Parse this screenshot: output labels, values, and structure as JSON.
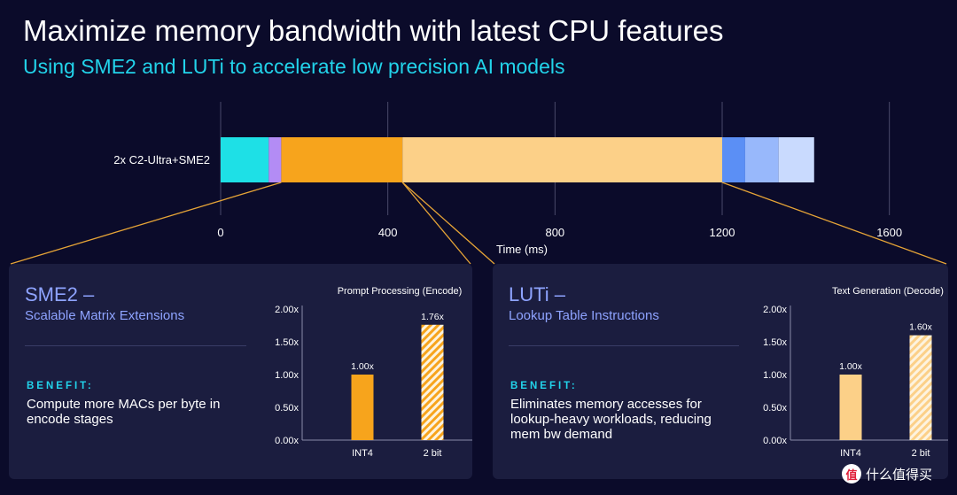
{
  "header": {
    "title": "Maximize memory bandwidth with latest CPU features",
    "subtitle": "Using SME2 and LUTi to accelerate low precision AI models"
  },
  "colors": {
    "accent_teal": "#22d3ea",
    "heading_blue": "#8ea3ff",
    "bar_orange": "#f7a41c",
    "bar_light_orange": "#fcd088",
    "connector_orange": "#e6a437"
  },
  "chart_data": [
    {
      "type": "bar",
      "orientation": "horizontal-stacked",
      "categories": [
        "2x C2-Ultra+SME2"
      ],
      "xlabel": "Time (ms)",
      "xlim": [
        0,
        1800
      ],
      "xticks": [
        0,
        400,
        800,
        1200,
        1600
      ],
      "grid": true,
      "segments": [
        {
          "start": 0,
          "end": 115,
          "color": "#1ee0e6"
        },
        {
          "start": 115,
          "end": 145,
          "color": "#b38cf5"
        },
        {
          "start": 145,
          "end": 435,
          "color": "#f7a41c"
        },
        {
          "start": 435,
          "end": 1200,
          "color": "#fcd088"
        },
        {
          "start": 1200,
          "end": 1255,
          "color": "#5b8ff5"
        },
        {
          "start": 1255,
          "end": 1335,
          "color": "#98b8fb"
        },
        {
          "start": 1335,
          "end": 1420,
          "color": "#c9dafe"
        }
      ]
    },
    {
      "type": "bar",
      "title": "Prompt Processing (Encode)",
      "categories": [
        "INT4",
        "2 bit"
      ],
      "values": [
        1.0,
        1.76
      ],
      "data_labels": [
        "1.00x",
        "1.76x"
      ],
      "ylim": [
        0,
        2.0
      ],
      "yticks": [
        "0.00x",
        "0.50x",
        "1.00x",
        "1.50x",
        "2.00x"
      ],
      "colors": [
        "#f7a41c",
        "#f7a41c"
      ],
      "hatched": [
        false,
        true
      ]
    },
    {
      "type": "bar",
      "title": "Text Generation (Decode)",
      "categories": [
        "INT4",
        "2 bit"
      ],
      "values": [
        1.0,
        1.6
      ],
      "data_labels": [
        "1.00x",
        "1.60x"
      ],
      "ylim": [
        0,
        2.0
      ],
      "yticks": [
        "0.00x",
        "0.50x",
        "1.00x",
        "1.50x",
        "2.00x"
      ],
      "colors": [
        "#fcd088",
        "#fcd088"
      ],
      "hatched": [
        false,
        true
      ]
    }
  ],
  "panels": [
    {
      "heading": "SME2 –",
      "sub": "Scalable Matrix Extensions",
      "benefit_label": "BENEFIT:",
      "benefit_text": "Compute more MACs per byte in encode stages"
    },
    {
      "heading": "LUTi –",
      "sub": "Lookup Table Instructions",
      "benefit_label": "BENEFIT:",
      "benefit_text": "Eliminates memory accesses for lookup-heavy workloads, reducing mem bw demand"
    }
  ],
  "watermark": {
    "badge": "值",
    "text": "什么值得买"
  }
}
